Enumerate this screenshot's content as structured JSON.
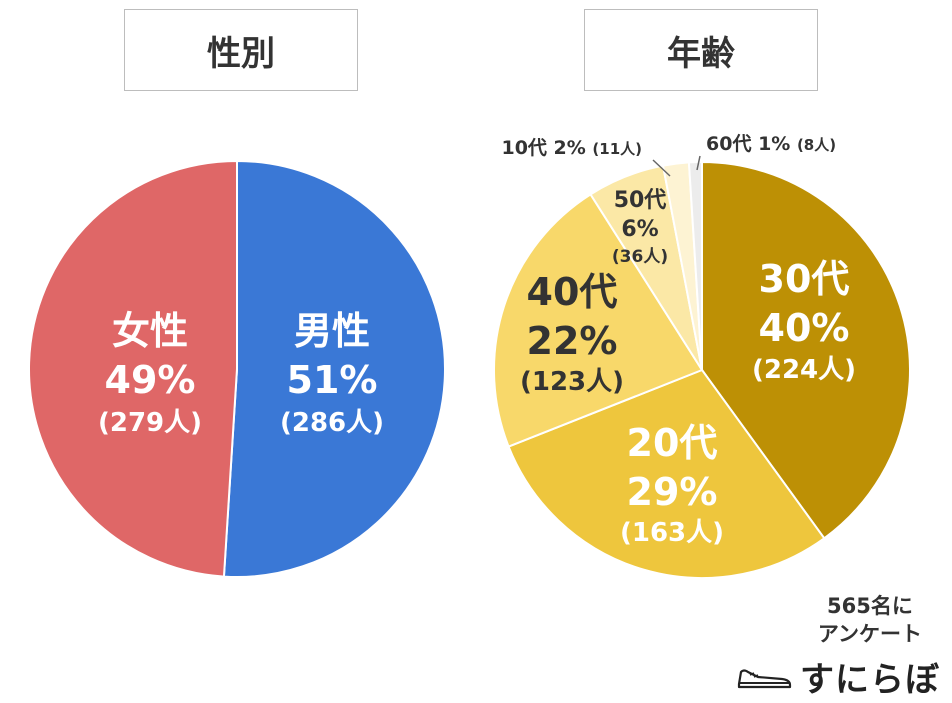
{
  "colors": {
    "female": "#df6767",
    "male": "#3a78d6",
    "age30": "#bd9005",
    "age20": "#eec63d",
    "age40": "#f8d86a",
    "age50": "#fbe8a6",
    "age10": "#fdf3d3",
    "age60": "#ececec"
  },
  "titles": {
    "gender": "性別",
    "age": "年齢"
  },
  "note": {
    "line1": "565名に",
    "line2": "アンケート"
  },
  "logo": {
    "text": "すにらぼ",
    "icon": "sneaker-icon"
  },
  "chart_data": [
    {
      "type": "pie",
      "title": "性別",
      "slices": [
        {
          "key": "male",
          "label": "男性",
          "percent": 51,
          "count": 286,
          "percent_text": "51%",
          "count_text": "(286人)",
          "color": "#3a78d6"
        },
        {
          "key": "female",
          "label": "女性",
          "percent": 49,
          "count": 279,
          "percent_text": "49%",
          "count_text": "(279人)",
          "color": "#df6767"
        }
      ]
    },
    {
      "type": "pie",
      "title": "年齢",
      "slices": [
        {
          "key": "age30",
          "label": "30代",
          "percent": 40,
          "count": 224,
          "percent_text": "40%",
          "count_text": "(224人)",
          "color": "#bd9005"
        },
        {
          "key": "age20",
          "label": "20代",
          "percent": 29,
          "count": 163,
          "percent_text": "29%",
          "count_text": "(163人)",
          "color": "#eec63d"
        },
        {
          "key": "age40",
          "label": "40代",
          "percent": 22,
          "count": 123,
          "percent_text": "22%",
          "count_text": "(123人)",
          "color": "#f8d86a"
        },
        {
          "key": "age50",
          "label": "50代",
          "percent": 6,
          "count": 36,
          "percent_text": "6%",
          "count_text": "(36人)",
          "color": "#fbe8a6"
        },
        {
          "key": "age10",
          "label": "10代",
          "percent": 2,
          "count": 11,
          "percent_text": "2%",
          "count_text": "(11人)",
          "color": "#fdf3d3"
        },
        {
          "key": "age60",
          "label": "60代",
          "percent": 1,
          "count": 8,
          "percent_text": "1%",
          "count_text": "(8人)",
          "color": "#ececec"
        }
      ]
    }
  ]
}
